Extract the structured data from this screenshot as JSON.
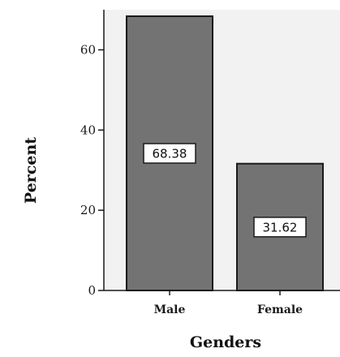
{
  "chart_data": {
    "type": "bar",
    "categories": [
      "Male",
      "Female"
    ],
    "values": [
      68.38,
      31.62
    ],
    "data_labels": [
      "68.38",
      "31.62"
    ],
    "xlabel": "Genders",
    "ylabel": "Percent",
    "ylim": [
      0,
      70
    ],
    "yticks": [
      0,
      20,
      40,
      60
    ],
    "ytick_labels": [
      "0",
      "20",
      "40",
      "60"
    ],
    "grid": false,
    "legend": "none",
    "colors": {
      "bar_fill": "#737373",
      "bar_stroke": "#1a1a1a",
      "plot_background": "#f2f2f2",
      "axis": "#1a1a1a"
    }
  }
}
